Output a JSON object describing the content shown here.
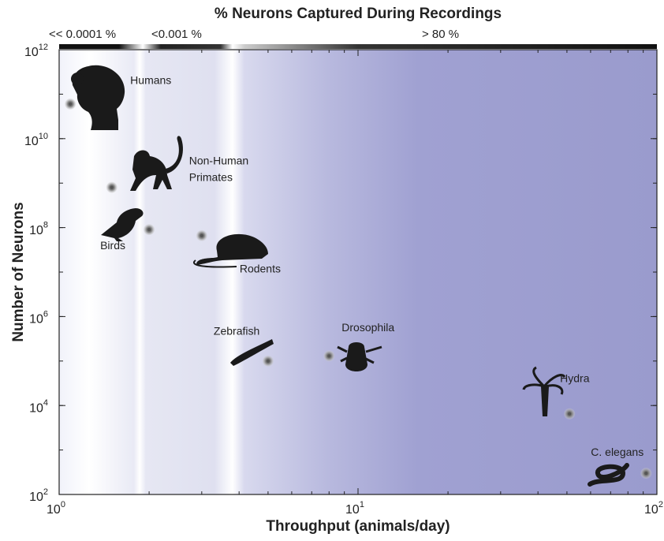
{
  "chart_data": {
    "type": "scatter",
    "title": "% Neurons Captured During Recordings",
    "capture_labels": [
      "<< 0.0001 %",
      "<0.001 %",
      "> 80 %"
    ],
    "x_label": "Throughput (animals/day)",
    "y_label": "Number of Neurons",
    "log_x": true,
    "log_y": true,
    "xlim": [
      1,
      100
    ],
    "xticks": [
      {
        "value": 1,
        "label": "10^0"
      },
      {
        "value": 10,
        "label": "10^1"
      },
      {
        "value": 100,
        "label": "10^2"
      }
    ],
    "ylim": [
      100,
      1000000000000
    ],
    "yticks": [
      {
        "value": 100,
        "label": "10^2"
      },
      {
        "value": 10000,
        "label": "10^4"
      },
      {
        "value": 1000000,
        "label": "10^6"
      },
      {
        "value": 100000000,
        "label": "10^8"
      },
      {
        "value": 10000000000,
        "label": "10^10"
      },
      {
        "value": 1000000000000,
        "label": "10^12"
      }
    ],
    "labels": [
      [
        "Humans"
      ],
      [
        "Non-Human",
        "Primates"
      ],
      [
        "Birds"
      ],
      [
        "Rodents"
      ],
      [
        "Zebrafish"
      ],
      [
        "Drosophila"
      ],
      [
        "Hydra"
      ],
      [
        "C. elegans"
      ]
    ],
    "x": [
      1.09,
      1.5,
      2.0,
      3.0,
      5.0,
      8.0,
      51,
      92
    ],
    "values": [
      60000000000,
      800000000,
      90000000,
      66000000,
      100000,
      130000,
      6500,
      300
    ],
    "color": "#555555"
  }
}
